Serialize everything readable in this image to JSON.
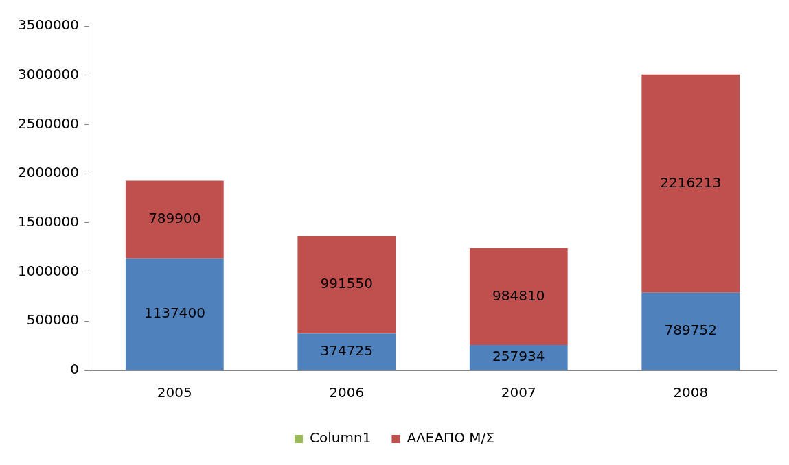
{
  "chart_data": {
    "type": "bar",
    "stacked": true,
    "categories": [
      "2005",
      "2006",
      "2007",
      "2008"
    ],
    "series": [
      {
        "color": "#4f81bd",
        "values": [
          1137400,
          374725,
          257934,
          789752
        ]
      },
      {
        "name": "Column1",
        "color": "#9bbb59",
        "values": [
          null,
          null,
          null,
          null
        ]
      },
      {
        "name": "ΑΛΕΑΠΟ Μ/Σ",
        "color": "#c0504d",
        "values": [
          789900,
          991550,
          984810,
          2216213
        ]
      }
    ],
    "ylim": [
      0,
      3500000
    ],
    "yticks": [
      0,
      500000,
      1000000,
      1500000,
      2000000,
      2500000,
      3000000,
      3500000
    ],
    "grid": false,
    "legend": "bottom",
    "data_labels": true
  }
}
